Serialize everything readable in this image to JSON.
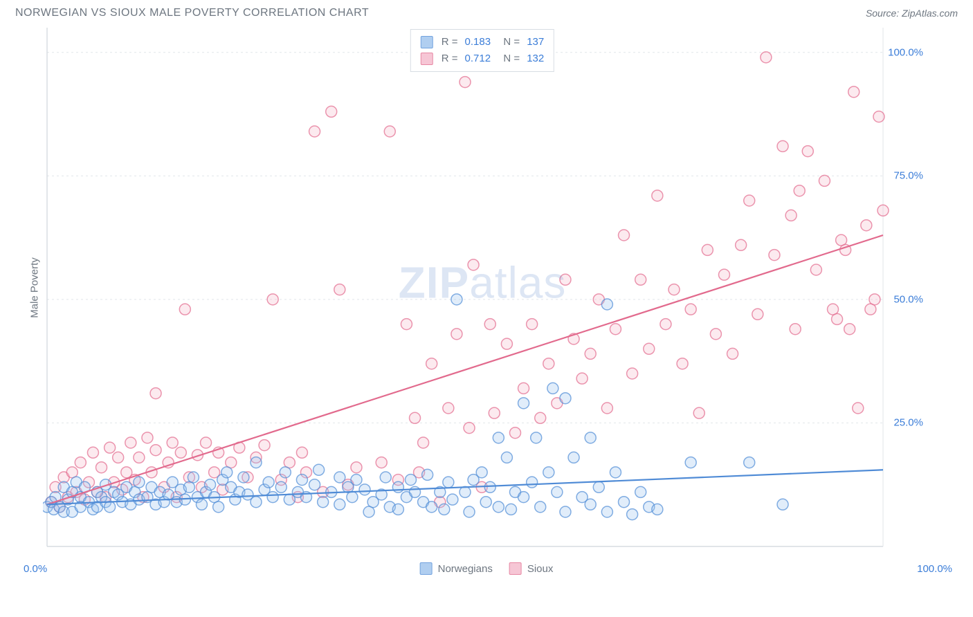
{
  "title": "NORWEGIAN VS SIOUX MALE POVERTY CORRELATION CHART",
  "source": "Source: ZipAtlas.com",
  "watermark_bold": "ZIP",
  "watermark_light": "atlas",
  "y_axis_title": "Male Poverty",
  "chart": {
    "type": "scatter",
    "xlim": [
      0,
      100
    ],
    "ylim": [
      0,
      105
    ],
    "y_ticks": [
      25,
      50,
      75,
      100
    ],
    "y_tick_labels": [
      "25.0%",
      "50.0%",
      "75.0%",
      "100.0%"
    ],
    "x_tick_min_label": "0.0%",
    "x_tick_max_label": "100.0%",
    "background_color": "#ffffff",
    "grid_color": "#e1e5ea",
    "axis_color": "#cfd5db",
    "marker_radius": 8,
    "marker_stroke_width": 1.5,
    "marker_fill_opacity": 0.3,
    "line_width": 2.2
  },
  "series": [
    {
      "name": "Norwegians",
      "color_stroke": "#4f8bd6",
      "color_fill": "#9dc3ed",
      "R": "0.183",
      "N": "137",
      "trend": {
        "x1": 0,
        "y1": 8.5,
        "x2": 100,
        "y2": 15.5
      },
      "points": [
        [
          0,
          8
        ],
        [
          0.5,
          9
        ],
        [
          0.8,
          7.5
        ],
        [
          1,
          10
        ],
        [
          1.5,
          8
        ],
        [
          2,
          12
        ],
        [
          2,
          7
        ],
        [
          2.5,
          9.5
        ],
        [
          3,
          11
        ],
        [
          3,
          7
        ],
        [
          3.5,
          13
        ],
        [
          4,
          10
        ],
        [
          4,
          8
        ],
        [
          4.5,
          12
        ],
        [
          5,
          9
        ],
        [
          5.5,
          7.5
        ],
        [
          6,
          11
        ],
        [
          6,
          8
        ],
        [
          6.5,
          10
        ],
        [
          7,
          12.5
        ],
        [
          7,
          9
        ],
        [
          7.5,
          8
        ],
        [
          8,
          11
        ],
        [
          8.5,
          10.5
        ],
        [
          9,
          9
        ],
        [
          9.5,
          12
        ],
        [
          10,
          8.5
        ],
        [
          10.5,
          11
        ],
        [
          11,
          13
        ],
        [
          11,
          9.5
        ],
        [
          12,
          10
        ],
        [
          12.5,
          12
        ],
        [
          13,
          8.5
        ],
        [
          13.5,
          11
        ],
        [
          14,
          9
        ],
        [
          14.5,
          10.5
        ],
        [
          15,
          13
        ],
        [
          15.5,
          9
        ],
        [
          16,
          11.5
        ],
        [
          16.5,
          9.5
        ],
        [
          17,
          12
        ],
        [
          17.5,
          14
        ],
        [
          18,
          10
        ],
        [
          18.5,
          8.5
        ],
        [
          19,
          11
        ],
        [
          19.5,
          12.5
        ],
        [
          20,
          10
        ],
        [
          20.5,
          8
        ],
        [
          21,
          13.5
        ],
        [
          21.5,
          15
        ],
        [
          22,
          12
        ],
        [
          22.5,
          9.5
        ],
        [
          23,
          11
        ],
        [
          23.5,
          14
        ],
        [
          24,
          10.5
        ],
        [
          25,
          17
        ],
        [
          25,
          9
        ],
        [
          26,
          11.5
        ],
        [
          26.5,
          13
        ],
        [
          27,
          10
        ],
        [
          28,
          12
        ],
        [
          28.5,
          15
        ],
        [
          29,
          9.5
        ],
        [
          30,
          11
        ],
        [
          30.5,
          13.5
        ],
        [
          31,
          10
        ],
        [
          32,
          12.5
        ],
        [
          32.5,
          15.5
        ],
        [
          33,
          9
        ],
        [
          34,
          11
        ],
        [
          35,
          14
        ],
        [
          35,
          8.5
        ],
        [
          36,
          12
        ],
        [
          36.5,
          10
        ],
        [
          37,
          13.5
        ],
        [
          38,
          11.5
        ],
        [
          38.5,
          7
        ],
        [
          39,
          9
        ],
        [
          40,
          10.5
        ],
        [
          40.5,
          14
        ],
        [
          41,
          8
        ],
        [
          42,
          12
        ],
        [
          42,
          7.5
        ],
        [
          43,
          10
        ],
        [
          43.5,
          13.5
        ],
        [
          44,
          11
        ],
        [
          45,
          9
        ],
        [
          45.5,
          14.5
        ],
        [
          46,
          8
        ],
        [
          47,
          11
        ],
        [
          47.5,
          7.5
        ],
        [
          48,
          13
        ],
        [
          48.5,
          9.5
        ],
        [
          49,
          50
        ],
        [
          50,
          11
        ],
        [
          50.5,
          7
        ],
        [
          51,
          13.5
        ],
        [
          52,
          15
        ],
        [
          52.5,
          9
        ],
        [
          53,
          12
        ],
        [
          54,
          22
        ],
        [
          54,
          8
        ],
        [
          55,
          18
        ],
        [
          55.5,
          7.5
        ],
        [
          56,
          11
        ],
        [
          57,
          29
        ],
        [
          57,
          10
        ],
        [
          58,
          13
        ],
        [
          58.5,
          22
        ],
        [
          59,
          8
        ],
        [
          60,
          15
        ],
        [
          60.5,
          32
        ],
        [
          61,
          11
        ],
        [
          62,
          30
        ],
        [
          62,
          7
        ],
        [
          63,
          18
        ],
        [
          64,
          10
        ],
        [
          65,
          22
        ],
        [
          65,
          8.5
        ],
        [
          66,
          12
        ],
        [
          67,
          7
        ],
        [
          68,
          15
        ],
        [
          69,
          9
        ],
        [
          70,
          6.5
        ],
        [
          71,
          11
        ],
        [
          72,
          8
        ],
        [
          73,
          7.5
        ],
        [
          77,
          17
        ],
        [
          84,
          17
        ],
        [
          88,
          8.5
        ],
        [
          67,
          49
        ]
      ]
    },
    {
      "name": "Sioux",
      "color_stroke": "#e26a8d",
      "color_fill": "#f4b9cb",
      "R": "0.712",
      "N": "132",
      "trend": {
        "x1": 0,
        "y1": 8.5,
        "x2": 100,
        "y2": 63
      },
      "points": [
        [
          0.5,
          9
        ],
        [
          1,
          12
        ],
        [
          1.5,
          8
        ],
        [
          2,
          14
        ],
        [
          2.5,
          10
        ],
        [
          3,
          15
        ],
        [
          3.5,
          11
        ],
        [
          4,
          17
        ],
        [
          4.5,
          9.5
        ],
        [
          5,
          13
        ],
        [
          5.5,
          19
        ],
        [
          6,
          11
        ],
        [
          6.5,
          16
        ],
        [
          7,
          10
        ],
        [
          7.5,
          20
        ],
        [
          8,
          13
        ],
        [
          8.5,
          18
        ],
        [
          9,
          11.5
        ],
        [
          9.5,
          15
        ],
        [
          10,
          21
        ],
        [
          10.5,
          13.5
        ],
        [
          11,
          18
        ],
        [
          11.5,
          10
        ],
        [
          12,
          22
        ],
        [
          12.5,
          15
        ],
        [
          13,
          19.5
        ],
        [
          13,
          31
        ],
        [
          14,
          12
        ],
        [
          14.5,
          17
        ],
        [
          15,
          21
        ],
        [
          15.5,
          10
        ],
        [
          16,
          19
        ],
        [
          16.5,
          48
        ],
        [
          17,
          14
        ],
        [
          18,
          18.5
        ],
        [
          18.5,
          12
        ],
        [
          19,
          21
        ],
        [
          20,
          15
        ],
        [
          20.5,
          19
        ],
        [
          21,
          11.5
        ],
        [
          22,
          17
        ],
        [
          23,
          20
        ],
        [
          24,
          14
        ],
        [
          25,
          18
        ],
        [
          26,
          20.5
        ],
        [
          27,
          50
        ],
        [
          28,
          13.5
        ],
        [
          29,
          17
        ],
        [
          30,
          10
        ],
        [
          30.5,
          19
        ],
        [
          31,
          15
        ],
        [
          32,
          84
        ],
        [
          33,
          11
        ],
        [
          34,
          88
        ],
        [
          35,
          52
        ],
        [
          36,
          12.5
        ],
        [
          37,
          16
        ],
        [
          40,
          17
        ],
        [
          41,
          84
        ],
        [
          42,
          13.5
        ],
        [
          43,
          45
        ],
        [
          44,
          26
        ],
        [
          44.5,
          15
        ],
        [
          45,
          21
        ],
        [
          46,
          37
        ],
        [
          47,
          9
        ],
        [
          48,
          28
        ],
        [
          49,
          43
        ],
        [
          50,
          94
        ],
        [
          50.5,
          24
        ],
        [
          51,
          57
        ],
        [
          52,
          12
        ],
        [
          53,
          45
        ],
        [
          53.5,
          27
        ],
        [
          55,
          41
        ],
        [
          56,
          23
        ],
        [
          57,
          32
        ],
        [
          58,
          45
        ],
        [
          59,
          26
        ],
        [
          60,
          37
        ],
        [
          61,
          29
        ],
        [
          62,
          54
        ],
        [
          63,
          42
        ],
        [
          64,
          34
        ],
        [
          65,
          39
        ],
        [
          66,
          50
        ],
        [
          67,
          28
        ],
        [
          68,
          44
        ],
        [
          69,
          63
        ],
        [
          70,
          35
        ],
        [
          71,
          54
        ],
        [
          72,
          40
        ],
        [
          73,
          71
        ],
        [
          74,
          45
        ],
        [
          75,
          52
        ],
        [
          76,
          37
        ],
        [
          77,
          48
        ],
        [
          78,
          27
        ],
        [
          79,
          60
        ],
        [
          80,
          43
        ],
        [
          81,
          55
        ],
        [
          82,
          39
        ],
        [
          83,
          61
        ],
        [
          84,
          70
        ],
        [
          85,
          47
        ],
        [
          86,
          99
        ],
        [
          87,
          59
        ],
        [
          88,
          81
        ],
        [
          89,
          67
        ],
        [
          89.5,
          44
        ],
        [
          90,
          72
        ],
        [
          91,
          80
        ],
        [
          92,
          56
        ],
        [
          93,
          74
        ],
        [
          94,
          48
        ],
        [
          94.5,
          46
        ],
        [
          95,
          62
        ],
        [
          95.5,
          60
        ],
        [
          96,
          44
        ],
        [
          96.5,
          92
        ],
        [
          97,
          28
        ],
        [
          98,
          65
        ],
        [
          98.5,
          48
        ],
        [
          99,
          50
        ],
        [
          99.5,
          87
        ],
        [
          100,
          68
        ]
      ]
    }
  ]
}
